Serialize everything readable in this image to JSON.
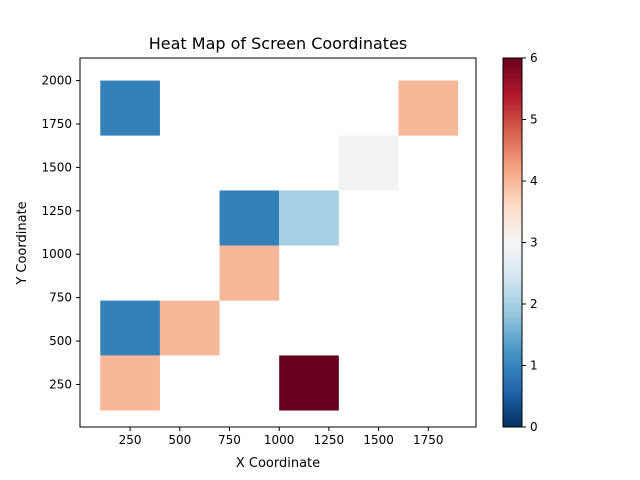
{
  "chart_data": {
    "type": "heatmap",
    "title": "Heat Map of Screen Coordinates",
    "xlabel": "X Coordinate",
    "ylabel": "Y Coordinate",
    "xlim": [
      -2,
      1990
    ],
    "ylim": [
      5,
      2130
    ],
    "x_edges": [
      100,
      400,
      700,
      1000,
      1300,
      1600,
      1900
    ],
    "y_edges": [
      100,
      417,
      733,
      1050,
      1367,
      1683,
      2000
    ],
    "x_ticks": [
      250,
      500,
      750,
      1000,
      1250,
      1500,
      1750
    ],
    "y_ticks": [
      250,
      500,
      750,
      1000,
      1250,
      1500,
      1750,
      2000
    ],
    "cells": [
      {
        "col": 0,
        "row": 0,
        "value": 4
      },
      {
        "col": 3,
        "row": 0,
        "value": 6
      },
      {
        "col": 0,
        "row": 1,
        "value": 1
      },
      {
        "col": 1,
        "row": 1,
        "value": 4
      },
      {
        "col": 2,
        "row": 2,
        "value": 4
      },
      {
        "col": 2,
        "row": 3,
        "value": 1
      },
      {
        "col": 3,
        "row": 3,
        "value": 2
      },
      {
        "col": 4,
        "row": 4,
        "value": 3
      },
      {
        "col": 0,
        "row": 5,
        "value": 1
      },
      {
        "col": 5,
        "row": 5,
        "value": 4
      }
    ],
    "empty_cells": "blank (value 0 masked)",
    "colormap": "RdBu_r",
    "colorbar": {
      "min": 0,
      "max": 6,
      "ticks": [
        0,
        1,
        2,
        3,
        4,
        5,
        6
      ]
    },
    "colors": {
      "0": "#053061",
      "1": "#3480b9",
      "2": "#a7d0e4",
      "3": "#f2f2f1",
      "4": "#f7b799",
      "5": "#c43c3c",
      "6": "#67001f"
    },
    "grid": false,
    "legend": "none"
  }
}
